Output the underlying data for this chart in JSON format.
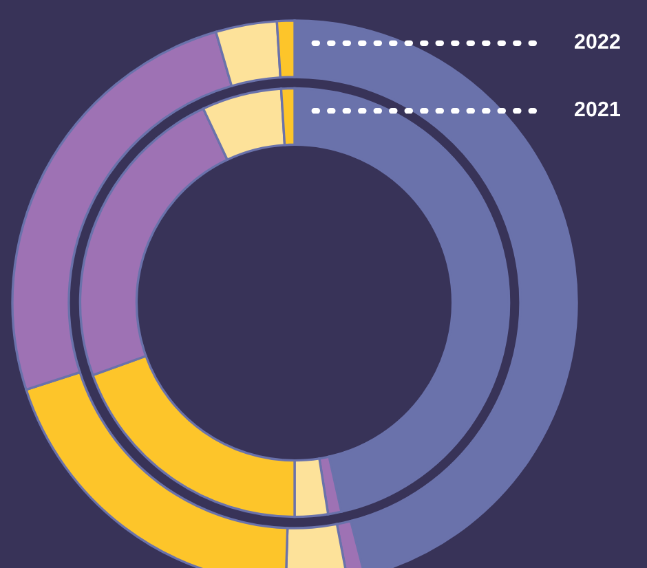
{
  "chart_data": {
    "type": "donut",
    "categories": [
      null,
      null,
      null,
      null,
      null,
      null,
      null
    ],
    "series": [
      {
        "name": "2022",
        "values": [
          46,
          1,
          3.5,
          19.5,
          25.5,
          3.5,
          1
        ],
        "colors": [
          "#6a72ab",
          "#9e72b4",
          "#fde29a",
          "#fdc52a",
          "#9e72b4",
          "#fde29a",
          "#fdc52a"
        ]
      },
      {
        "name": "2021",
        "values": [
          46.5,
          1,
          2.5,
          19.5,
          23.5,
          6,
          1
        ],
        "colors": [
          "#6a72ab",
          "#9e72b4",
          "#fde29a",
          "#fdc52a",
          "#9e72b4",
          "#fde29a",
          "#fdc52a"
        ]
      }
    ],
    "legend": false
  }
}
